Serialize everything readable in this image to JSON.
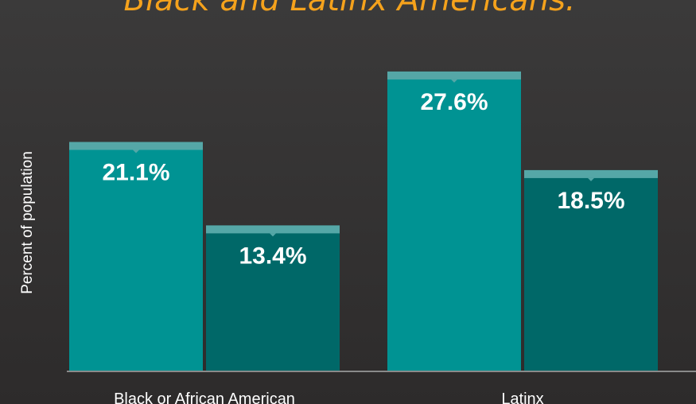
{
  "chart_data": {
    "type": "bar",
    "title": "Black and Latinx Americans:",
    "y_label": "Percent of population",
    "categories": [
      "Black or African American",
      "Latinx"
    ],
    "series": [
      {
        "color": "#009393",
        "values": [
          21.1,
          27.6
        ],
        "value_labels": [
          "21.1%",
          "27.6%"
        ]
      },
      {
        "color": "#006868",
        "values": [
          13.4,
          18.5
        ],
        "value_labels": [
          "13.4%",
          "18.5%"
        ]
      }
    ],
    "ylim": [
      0,
      34.2
    ]
  }
}
